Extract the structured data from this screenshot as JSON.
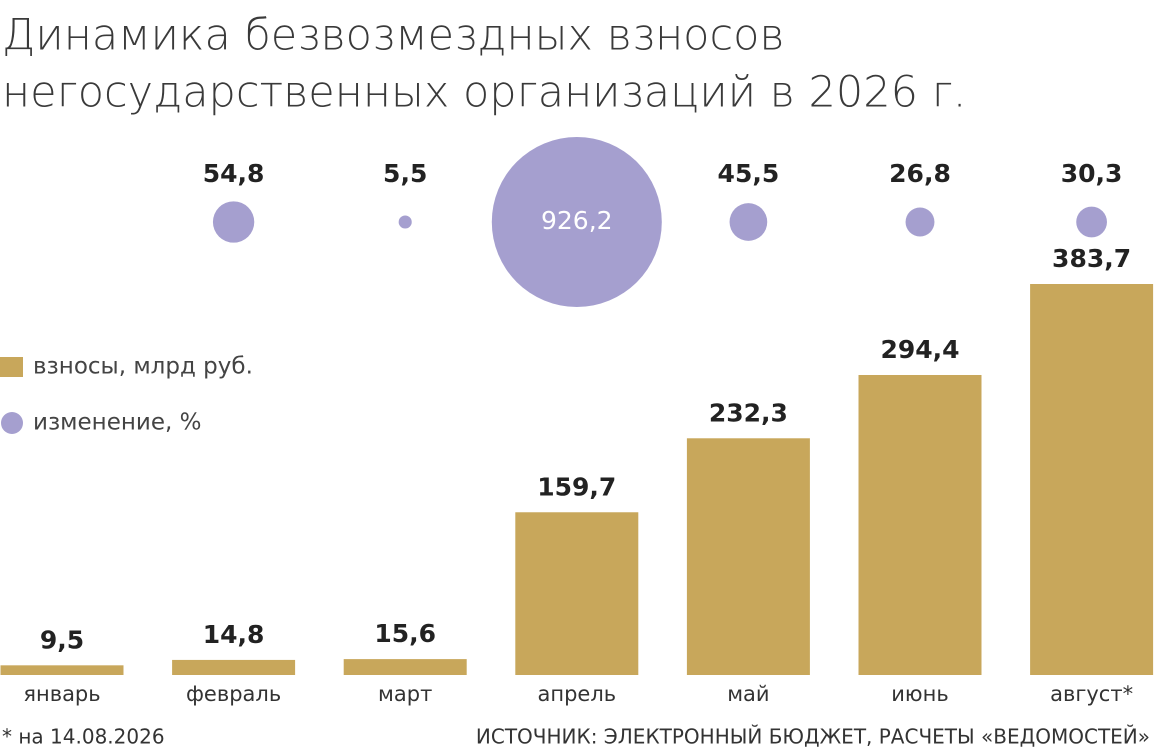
{
  "chart_data": {
    "type": "bar",
    "title": [
      "Динамика безвозмездных взносов",
      "негосударственных организаций в 2026 г."
    ],
    "categories": [
      "январь",
      "февраль",
      "март",
      "апрель",
      "май",
      "июнь",
      "август*"
    ],
    "series": [
      {
        "name": "взносы, млрд руб.",
        "type": "bar",
        "color": "#c8a75b",
        "values": [
          9.5,
          14.8,
          15.6,
          159.7,
          232.3,
          294.4,
          383.7
        ],
        "value_labels": [
          "9,5",
          "14,8",
          "15,6",
          "159,7",
          "232,3",
          "294,4",
          "383,7"
        ]
      },
      {
        "name": "изменение, %",
        "type": "bubble",
        "color": "#a59fcf",
        "values": [
          null,
          54.8,
          5.5,
          926.2,
          45.5,
          26.8,
          30.3
        ],
        "value_labels": [
          null,
          "54,8",
          "5,5",
          "926,2",
          "45,5",
          "26,8",
          "30,3"
        ]
      }
    ],
    "footnote": "* на 14.08.2026",
    "source": "ИСТОЧНИК: ЭЛЕКТРОННЫЙ БЮДЖЕТ, РАСЧЕТЫ «ВЕДОМОСТЕЙ»"
  }
}
